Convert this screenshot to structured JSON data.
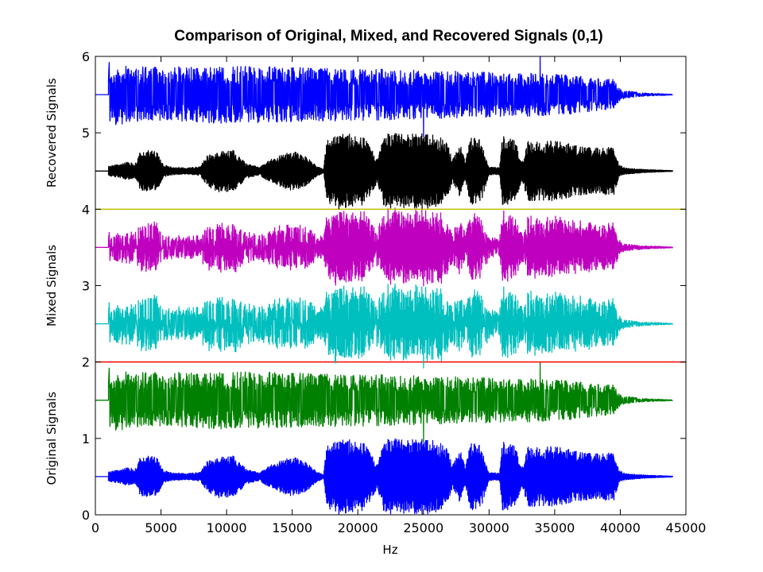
{
  "chart_data": {
    "type": "line",
    "title": "Comparison of Original, Mixed, and Recovered Signals (0,1)",
    "xlabel": "Hz",
    "ylabel_groups": [
      "Original Signals",
      "Mixed Signals",
      "Recovered Signals"
    ],
    "xlim": [
      0,
      45000
    ],
    "ylim": [
      0,
      6
    ],
    "x_ticks": [
      "0",
      "5000",
      "10000",
      "15000",
      "20000",
      "25000",
      "30000",
      "35000",
      "40000",
      "45000"
    ],
    "y_ticks": [
      "0",
      "1",
      "2",
      "3",
      "4",
      "5",
      "6"
    ],
    "grid": false,
    "signal_start": 1000,
    "signal_end": 44000,
    "envelope_a": [
      [
        1000,
        0.06
      ],
      [
        2000,
        0.1
      ],
      [
        2600,
        0.12
      ],
      [
        3000,
        0.08
      ],
      [
        3400,
        0.25
      ],
      [
        4000,
        0.27
      ],
      [
        4700,
        0.25
      ],
      [
        5200,
        0.08
      ],
      [
        6000,
        0.05
      ],
      [
        7000,
        0.04
      ],
      [
        8000,
        0.06
      ],
      [
        8500,
        0.2
      ],
      [
        9500,
        0.28
      ],
      [
        10500,
        0.27
      ],
      [
        11500,
        0.1
      ],
      [
        12500,
        0.05
      ],
      [
        13000,
        0.12
      ],
      [
        14000,
        0.2
      ],
      [
        15000,
        0.26
      ],
      [
        16000,
        0.2
      ],
      [
        16800,
        0.08
      ],
      [
        17400,
        0.02
      ],
      [
        17600,
        0.4
      ],
      [
        18500,
        0.5
      ],
      [
        19500,
        0.48
      ],
      [
        20500,
        0.45
      ],
      [
        21500,
        0.15
      ],
      [
        22000,
        0.48
      ],
      [
        23000,
        0.5
      ],
      [
        24000,
        0.48
      ],
      [
        25000,
        0.5
      ],
      [
        26000,
        0.46
      ],
      [
        26800,
        0.4
      ],
      [
        27200,
        0.15
      ],
      [
        27800,
        0.35
      ],
      [
        28200,
        0.12
      ],
      [
        28600,
        0.46
      ],
      [
        29400,
        0.4
      ],
      [
        30000,
        0.05
      ],
      [
        30800,
        0.05
      ],
      [
        31000,
        0.46
      ],
      [
        32000,
        0.4
      ],
      [
        32500,
        0.12
      ],
      [
        33000,
        0.4
      ],
      [
        34000,
        0.38
      ],
      [
        35000,
        0.4
      ],
      [
        36000,
        0.36
      ],
      [
        37000,
        0.32
      ],
      [
        38000,
        0.3
      ],
      [
        39500,
        0.32
      ],
      [
        39900,
        0.08
      ],
      [
        40500,
        0.04
      ],
      [
        42000,
        0.02
      ],
      [
        44000,
        0.005
      ]
    ],
    "envelope_b": [
      [
        1000,
        0.4
      ],
      [
        5000,
        0.36
      ],
      [
        10000,
        0.38
      ],
      [
        15000,
        0.36
      ],
      [
        20000,
        0.34
      ],
      [
        25000,
        0.32
      ],
      [
        30000,
        0.3
      ],
      [
        34000,
        0.28
      ],
      [
        36000,
        0.26
      ],
      [
        38000,
        0.22
      ],
      [
        39500,
        0.2
      ],
      [
        40200,
        0.06
      ],
      [
        41500,
        0.025
      ],
      [
        44000,
        0.005
      ]
    ],
    "series": [
      {
        "name": "",
        "role": "original",
        "source": "a",
        "offset": 0.5,
        "color": "#0000ff"
      },
      {
        "name": "",
        "role": "original",
        "source": "b",
        "offset": 1.5,
        "color": "#008000"
      },
      {
        "name": "",
        "role": "separator",
        "value": 2,
        "color": "#ff0000"
      },
      {
        "name": "",
        "role": "mixed",
        "source": "mix1",
        "offset": 2.5,
        "color": "#00bfbf"
      },
      {
        "name": "",
        "role": "mixed",
        "source": "mix2",
        "offset": 3.5,
        "color": "#bf00bf"
      },
      {
        "name": "",
        "role": "separator",
        "value": 4,
        "color": "#bfbf00"
      },
      {
        "name": "",
        "role": "recovered",
        "source": "a",
        "offset": 4.5,
        "color": "#000000"
      },
      {
        "name": "",
        "role": "recovered",
        "source": "b",
        "offset": 5.5,
        "color": "#0000ff"
      }
    ],
    "spikes_b": [
      {
        "x": 1050,
        "amp": 0.42
      },
      {
        "x": 25000,
        "amp": -0.55
      },
      {
        "x": 33900,
        "amp": 0.5
      }
    ]
  }
}
